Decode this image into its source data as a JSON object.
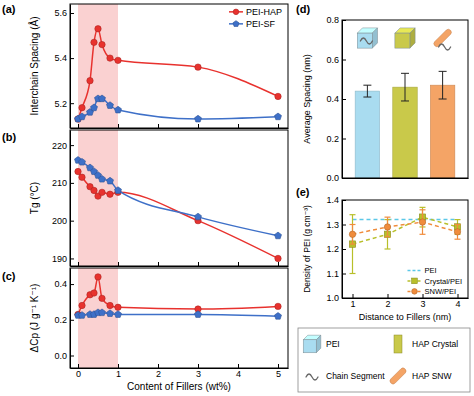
{
  "chart_data": [
    {
      "type": "line",
      "title": "(a)",
      "ylabel": "Interchain Spacing (Å)",
      "x": [
        0,
        0.1,
        0.3,
        0.4,
        0.5,
        0.6,
        0.8,
        1,
        3,
        5
      ],
      "series": [
        {
          "name": "PEI-HAP",
          "color": "#e8322e",
          "marker": "circle",
          "values": [
            5.13,
            5.18,
            5.3,
            5.47,
            5.53,
            5.46,
            5.4,
            5.39,
            5.36,
            5.23
          ]
        },
        {
          "name": "PEI-SF",
          "color": "#3e70c8",
          "marker": "pentagon",
          "values": [
            5.13,
            5.14,
            5.16,
            5.18,
            5.22,
            5.22,
            5.19,
            5.17,
            5.13,
            5.14
          ]
        }
      ],
      "xlim": [
        -0.2,
        5.25
      ],
      "xticks": [
        0,
        1,
        2,
        3,
        4,
        5
      ],
      "ylim": [
        5.09,
        5.64
      ],
      "yticks": [
        5.2,
        5.4,
        5.6
      ],
      "tick_labels": "y",
      "legend": "upper right",
      "highlight": [
        0,
        1
      ]
    },
    {
      "type": "line",
      "title": "(b)",
      "ylabel": "Tg (°C)",
      "x": [
        0,
        0.1,
        0.3,
        0.4,
        0.5,
        0.6,
        0.8,
        1,
        3,
        5
      ],
      "series": [
        {
          "color": "#e8322e",
          "marker": "circle",
          "values": [
            213,
            211.5,
            209,
            208,
            206.5,
            207.5,
            207,
            207.5,
            200,
            190
          ]
        },
        {
          "color": "#3e70c8",
          "marker": "pentagon",
          "values": [
            216,
            215.5,
            214,
            213,
            212,
            211,
            210.5,
            208,
            201,
            196
          ]
        }
      ],
      "xlim": [
        -0.2,
        5.25
      ],
      "xticks": [
        0,
        1,
        2,
        3,
        4,
        5
      ],
      "ylim": [
        188,
        224
      ],
      "yticks": [
        190,
        200,
        210,
        220
      ],
      "tick_labels": "y",
      "highlight": [
        0,
        1
      ]
    },
    {
      "type": "line",
      "title": "(c)",
      "ylabel": "ΔCp (J g⁻¹ K⁻¹)",
      "xlabel": "Content of Fillers (wt%)",
      "x": [
        0,
        0.1,
        0.3,
        0.4,
        0.5,
        0.6,
        0.8,
        1,
        3,
        5
      ],
      "series": [
        {
          "color": "#e8322e",
          "marker": "circle",
          "values": [
            0.23,
            0.28,
            0.34,
            0.35,
            0.44,
            0.32,
            0.28,
            0.27,
            0.26,
            0.275
          ]
        },
        {
          "color": "#3e70c8",
          "marker": "pentagon",
          "values": [
            0.225,
            0.225,
            0.23,
            0.23,
            0.24,
            0.24,
            0.235,
            0.23,
            0.23,
            0.22
          ]
        }
      ],
      "xlim": [
        -0.2,
        5.25
      ],
      "xticks": [
        0,
        1,
        2,
        3,
        4,
        5
      ],
      "ylim": [
        -0.07,
        0.49
      ],
      "yticks": [
        {
          "value": 0,
          "label": "0.0"
        },
        0.2,
        0.4
      ],
      "highlight": [
        0,
        1
      ]
    },
    {
      "type": "bar",
      "title": "(d)",
      "ylabel": "Average Spacing (nm)",
      "categories": [
        null,
        null,
        null
      ],
      "values": [
        0.44,
        0.46,
        0.47
      ],
      "errors": [
        0.03,
        0.07,
        0.07
      ],
      "colors": [
        "#a9dcf0",
        "#c9c94a",
        "#f4a466"
      ],
      "ylim": [
        0,
        0.8
      ],
      "yticks": [
        {
          "value": 0,
          "label": "0.0"
        },
        0.2,
        0.4,
        0.6,
        0.8
      ]
    },
    {
      "type": "line",
      "title": "(e)",
      "ylabel": "Density of PEI (g cm⁻³)",
      "xlabel": "Distance to Fillers (nm)",
      "x": [
        1,
        2,
        3,
        4
      ],
      "series": [
        {
          "name": "PEI",
          "color": "#5bc8e8",
          "marker": "none",
          "line_style": "dashed",
          "values": [
            1.32,
            1.32,
            1.32,
            1.32
          ]
        },
        {
          "name": "Crystal/PEI",
          "color": "#b8bf2a",
          "marker": "square",
          "line_style": "dashed",
          "values": [
            1.22,
            1.26,
            1.33,
            1.29
          ],
          "errors": [
            0.12,
            0.06,
            0.04,
            0.03
          ]
        },
        {
          "name": "SNW/PEI",
          "color": "#f08c3c",
          "marker": "circle",
          "line_style": "dashed",
          "values": [
            1.26,
            1.29,
            1.31,
            1.27
          ],
          "errors": [
            0.04,
            0.04,
            0.05,
            0.03
          ]
        }
      ],
      "xlim": [
        0.7,
        4.3
      ],
      "xticks": [
        1,
        2,
        3,
        4
      ],
      "ylim": [
        1.0,
        1.4
      ],
      "yticks": [
        {
          "value": 1,
          "label": "1.0"
        },
        1.1,
        1.2,
        1.3,
        1.4
      ],
      "legend": "lower right"
    }
  ],
  "schematic_legend": {
    "items": [
      "PEI",
      "HAP Crystal",
      "Chain Segment",
      "HAP SNW"
    ]
  }
}
